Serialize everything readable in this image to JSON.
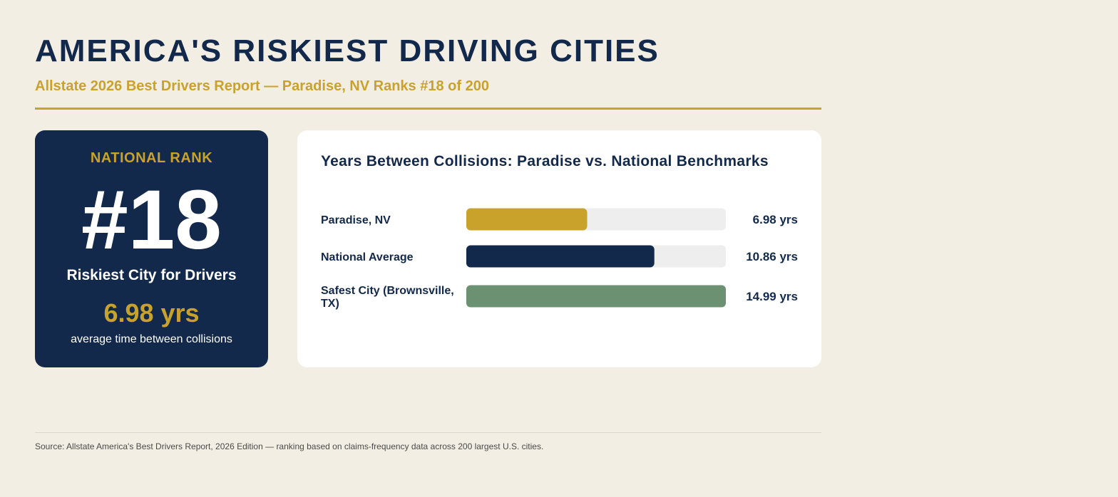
{
  "header": {
    "title": "AMERICA'S RISKIEST DRIVING CITIES",
    "subtitle": "Allstate 2026 Best Drivers Report — Paradise, NV Ranks #18 of 200"
  },
  "rank_card": {
    "label": "NATIONAL RANK",
    "rank": "#18",
    "description": "Riskiest City for Drivers",
    "value": "6.98 yrs",
    "caption": "average time between collisions"
  },
  "chart_data": {
    "type": "bar",
    "orientation": "horizontal",
    "title": "Years Between Collisions: Paradise vs. National Benchmarks",
    "categories": [
      "Paradise, NV",
      "National Average",
      "Safest City (Brownsville, TX)"
    ],
    "category_lines": [
      [
        "Paradise, NV"
      ],
      [
        "National Average"
      ],
      [
        "Safest City (Brownsville,",
        "TX)"
      ]
    ],
    "values": [
      6.98,
      10.86,
      14.99
    ],
    "value_labels": [
      "6.98 yrs",
      "10.86 yrs",
      "14.99 yrs"
    ],
    "colors": [
      "#c9a22c",
      "#13294b",
      "#6b9172"
    ],
    "track_color": "#eeeeee",
    "xlim": [
      0,
      14.99
    ]
  },
  "footer": {
    "source": "Source: Allstate America's Best Drivers Report, 2026 Edition — ranking based on claims-frequency data across 200 largest U.S. cities."
  }
}
